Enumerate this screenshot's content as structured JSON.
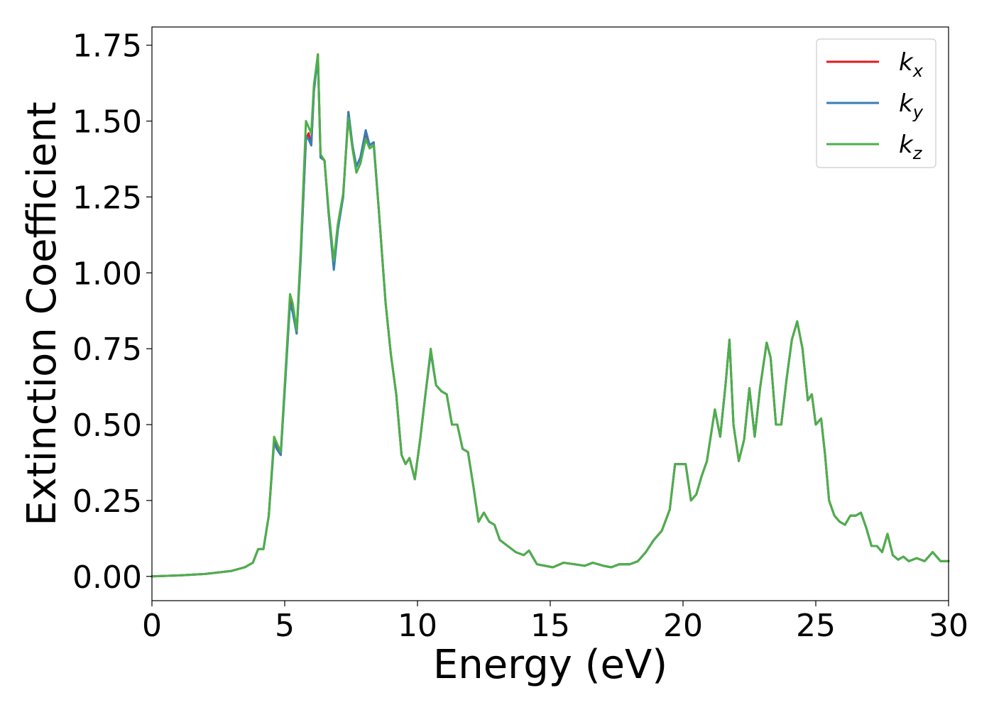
{
  "chart_data": {
    "type": "line",
    "xlabel": "Energy (eV)",
    "ylabel": "Extinction Coefficient",
    "xlim": [
      0,
      30
    ],
    "ylim": [
      -0.08,
      1.81
    ],
    "xticks": [
      0,
      5,
      10,
      15,
      20,
      25,
      30
    ],
    "xtick_labels": [
      "0",
      "5",
      "10",
      "15",
      "20",
      "25",
      "30"
    ],
    "yticks": [
      0,
      0.25,
      0.5,
      0.75,
      1.0,
      1.25,
      1.5,
      1.75
    ],
    "ytick_labels": [
      "0.00",
      "0.25",
      "0.50",
      "0.75",
      "1.00",
      "1.25",
      "1.50",
      "1.75"
    ],
    "grid": false,
    "legend_position": "top-right",
    "series": [
      {
        "name": "k_x",
        "label_main": "k",
        "label_sub": "x",
        "color": "#e41a1c",
        "x": [
          0,
          1,
          2,
          3,
          3.5,
          3.8,
          4.0,
          4.2,
          4.4,
          4.6,
          4.7,
          4.85,
          5.0,
          5.2,
          5.3,
          5.45,
          5.6,
          5.8,
          5.9,
          6.0,
          6.1,
          6.25,
          6.35,
          6.5,
          6.65,
          6.85,
          7.0,
          7.2,
          7.4,
          7.55,
          7.7,
          7.85,
          8.05,
          8.2,
          8.35,
          8.55,
          8.8,
          9.0,
          9.2,
          9.4,
          9.55,
          9.7,
          9.9,
          10.1,
          10.3,
          10.5,
          10.7,
          10.9,
          11.1,
          11.3,
          11.5,
          11.7,
          11.9,
          12.1,
          12.3,
          12.5,
          12.7,
          12.9,
          13.1,
          13.4,
          13.7,
          14.0,
          14.2,
          14.5,
          14.8,
          15.1,
          15.5,
          15.9,
          16.3,
          16.6,
          17.0,
          17.3,
          17.6,
          18.0,
          18.3,
          18.6,
          18.9,
          19.2,
          19.5,
          19.7,
          19.9,
          20.1,
          20.3,
          20.5,
          20.7,
          20.9,
          21.2,
          21.4,
          21.6,
          21.75,
          21.9,
          22.1,
          22.3,
          22.5,
          22.7,
          22.9,
          23.15,
          23.3,
          23.5,
          23.7,
          23.9,
          24.1,
          24.3,
          24.5,
          24.7,
          24.85,
          25.0,
          25.2,
          25.35,
          25.5,
          25.7,
          25.9,
          26.1,
          26.3,
          26.5,
          26.7,
          26.9,
          27.1,
          27.3,
          27.5,
          27.7,
          27.9,
          28.1,
          28.3,
          28.5,
          28.8,
          29.1,
          29.4,
          29.7,
          30.0
        ],
        "values": [
          0.0,
          0.003,
          0.008,
          0.018,
          0.03,
          0.045,
          0.09,
          0.09,
          0.2,
          0.45,
          0.43,
          0.4,
          0.62,
          0.91,
          0.88,
          0.8,
          1.05,
          1.44,
          1.46,
          1.42,
          1.6,
          1.72,
          1.38,
          1.37,
          1.2,
          1.02,
          1.15,
          1.25,
          1.53,
          1.42,
          1.35,
          1.38,
          1.46,
          1.42,
          1.43,
          1.2,
          0.9,
          0.73,
          0.6,
          0.4,
          0.37,
          0.39,
          0.32,
          0.45,
          0.6,
          0.74,
          0.63,
          0.61,
          0.6,
          0.5,
          0.5,
          0.42,
          0.41,
          0.3,
          0.18,
          0.21,
          0.18,
          0.17,
          0.12,
          0.1,
          0.08,
          0.07,
          0.085,
          0.04,
          0.035,
          0.03,
          0.045,
          0.04,
          0.035,
          0.045,
          0.035,
          0.03,
          0.04,
          0.04,
          0.05,
          0.08,
          0.12,
          0.15,
          0.22,
          0.37,
          0.37,
          0.37,
          0.25,
          0.27,
          0.33,
          0.38,
          0.55,
          0.46,
          0.63,
          0.78,
          0.5,
          0.38,
          0.45,
          0.62,
          0.46,
          0.62,
          0.77,
          0.72,
          0.5,
          0.5,
          0.65,
          0.78,
          0.84,
          0.75,
          0.58,
          0.6,
          0.5,
          0.52,
          0.4,
          0.25,
          0.2,
          0.18,
          0.17,
          0.2,
          0.2,
          0.21,
          0.16,
          0.1,
          0.1,
          0.08,
          0.14,
          0.07,
          0.055,
          0.065,
          0.05,
          0.06,
          0.05,
          0.08,
          0.05,
          0.05
        ]
      },
      {
        "name": "k_y",
        "label_main": "k",
        "label_sub": "y",
        "color": "#377eb8",
        "x": [
          0,
          1,
          2,
          3,
          3.5,
          3.8,
          4.0,
          4.2,
          4.4,
          4.6,
          4.7,
          4.85,
          5.0,
          5.2,
          5.3,
          5.45,
          5.6,
          5.8,
          5.9,
          6.0,
          6.1,
          6.25,
          6.35,
          6.5,
          6.65,
          6.85,
          7.0,
          7.2,
          7.4,
          7.55,
          7.7,
          7.85,
          8.05,
          8.2,
          8.35,
          8.55,
          8.8,
          9.0,
          9.2,
          9.4,
          9.55,
          9.7,
          9.9,
          10.1,
          10.3,
          10.5,
          10.7,
          10.9,
          11.1,
          11.3,
          11.5,
          11.7,
          11.9,
          12.1,
          12.3,
          12.5,
          12.7,
          12.9,
          13.1,
          13.4,
          13.7,
          14.0,
          14.2,
          14.5,
          14.8,
          15.1,
          15.5,
          15.9,
          16.3,
          16.6,
          17.0,
          17.3,
          17.6,
          18.0,
          18.3,
          18.6,
          18.9,
          19.2,
          19.5,
          19.7,
          19.9,
          20.1,
          20.3,
          20.5,
          20.7,
          20.9,
          21.2,
          21.4,
          21.6,
          21.75,
          21.9,
          22.1,
          22.3,
          22.5,
          22.7,
          22.9,
          23.15,
          23.3,
          23.5,
          23.7,
          23.9,
          24.1,
          24.3,
          24.5,
          24.7,
          24.85,
          25.0,
          25.2,
          25.35,
          25.5,
          25.7,
          25.9,
          26.1,
          26.3,
          26.5,
          26.7,
          26.9,
          27.1,
          27.3,
          27.5,
          27.7,
          27.9,
          28.1,
          28.3,
          28.5,
          28.8,
          29.1,
          29.4,
          29.7,
          30.0
        ],
        "values": [
          0.0,
          0.003,
          0.008,
          0.018,
          0.03,
          0.045,
          0.09,
          0.09,
          0.2,
          0.44,
          0.42,
          0.4,
          0.61,
          0.9,
          0.87,
          0.8,
          1.04,
          1.45,
          1.44,
          1.42,
          1.6,
          1.71,
          1.38,
          1.37,
          1.2,
          1.01,
          1.14,
          1.25,
          1.53,
          1.42,
          1.35,
          1.38,
          1.47,
          1.42,
          1.43,
          1.2,
          0.9,
          0.73,
          0.6,
          0.4,
          0.37,
          0.39,
          0.32,
          0.45,
          0.6,
          0.74,
          0.63,
          0.61,
          0.6,
          0.5,
          0.5,
          0.42,
          0.41,
          0.3,
          0.18,
          0.21,
          0.18,
          0.17,
          0.12,
          0.1,
          0.08,
          0.07,
          0.085,
          0.04,
          0.035,
          0.03,
          0.045,
          0.04,
          0.035,
          0.045,
          0.035,
          0.03,
          0.04,
          0.04,
          0.05,
          0.08,
          0.12,
          0.15,
          0.22,
          0.37,
          0.37,
          0.37,
          0.25,
          0.27,
          0.33,
          0.38,
          0.55,
          0.46,
          0.63,
          0.78,
          0.5,
          0.38,
          0.45,
          0.62,
          0.46,
          0.62,
          0.77,
          0.72,
          0.5,
          0.5,
          0.65,
          0.78,
          0.84,
          0.75,
          0.58,
          0.6,
          0.5,
          0.52,
          0.4,
          0.25,
          0.2,
          0.18,
          0.17,
          0.2,
          0.2,
          0.21,
          0.16,
          0.1,
          0.1,
          0.08,
          0.14,
          0.07,
          0.055,
          0.065,
          0.05,
          0.06,
          0.05,
          0.08,
          0.05,
          0.05
        ]
      },
      {
        "name": "k_z",
        "label_main": "k",
        "label_sub": "z",
        "color": "#4daf4a",
        "x": [
          0,
          1,
          2,
          3,
          3.5,
          3.8,
          4.0,
          4.2,
          4.4,
          4.6,
          4.7,
          4.85,
          5.0,
          5.2,
          5.3,
          5.45,
          5.6,
          5.8,
          5.9,
          6.0,
          6.1,
          6.25,
          6.35,
          6.5,
          6.65,
          6.85,
          7.0,
          7.2,
          7.4,
          7.55,
          7.7,
          7.85,
          8.05,
          8.2,
          8.35,
          8.55,
          8.8,
          9.0,
          9.2,
          9.4,
          9.55,
          9.7,
          9.9,
          10.1,
          10.3,
          10.5,
          10.7,
          10.9,
          11.1,
          11.3,
          11.5,
          11.7,
          11.9,
          12.1,
          12.3,
          12.5,
          12.7,
          12.9,
          13.1,
          13.4,
          13.7,
          14.0,
          14.2,
          14.5,
          14.8,
          15.1,
          15.5,
          15.9,
          16.3,
          16.6,
          17.0,
          17.3,
          17.6,
          18.0,
          18.3,
          18.6,
          18.9,
          19.2,
          19.5,
          19.7,
          19.9,
          20.1,
          20.3,
          20.5,
          20.7,
          20.9,
          21.2,
          21.4,
          21.6,
          21.75,
          21.9,
          22.1,
          22.3,
          22.5,
          22.7,
          22.9,
          23.15,
          23.3,
          23.5,
          23.7,
          23.9,
          24.1,
          24.3,
          24.5,
          24.7,
          24.85,
          25.0,
          25.2,
          25.35,
          25.5,
          25.7,
          25.9,
          26.1,
          26.3,
          26.5,
          26.7,
          26.9,
          27.1,
          27.3,
          27.5,
          27.7,
          27.9,
          28.1,
          28.3,
          28.5,
          28.8,
          29.1,
          29.4,
          29.7,
          30.0
        ],
        "values": [
          0.0,
          0.003,
          0.008,
          0.018,
          0.03,
          0.045,
          0.09,
          0.09,
          0.2,
          0.46,
          0.44,
          0.41,
          0.63,
          0.93,
          0.9,
          0.81,
          1.07,
          1.5,
          1.48,
          1.46,
          1.62,
          1.72,
          1.39,
          1.37,
          1.21,
          1.04,
          1.16,
          1.26,
          1.51,
          1.41,
          1.33,
          1.36,
          1.44,
          1.41,
          1.42,
          1.2,
          0.9,
          0.73,
          0.6,
          0.4,
          0.37,
          0.39,
          0.32,
          0.45,
          0.6,
          0.75,
          0.63,
          0.61,
          0.6,
          0.5,
          0.5,
          0.42,
          0.41,
          0.3,
          0.18,
          0.21,
          0.18,
          0.17,
          0.12,
          0.1,
          0.08,
          0.07,
          0.085,
          0.04,
          0.035,
          0.03,
          0.045,
          0.04,
          0.035,
          0.045,
          0.035,
          0.03,
          0.04,
          0.04,
          0.05,
          0.08,
          0.12,
          0.15,
          0.22,
          0.37,
          0.37,
          0.37,
          0.25,
          0.27,
          0.33,
          0.38,
          0.55,
          0.46,
          0.63,
          0.78,
          0.5,
          0.38,
          0.45,
          0.62,
          0.46,
          0.62,
          0.77,
          0.72,
          0.5,
          0.5,
          0.65,
          0.78,
          0.84,
          0.75,
          0.58,
          0.6,
          0.5,
          0.52,
          0.4,
          0.25,
          0.2,
          0.18,
          0.17,
          0.2,
          0.2,
          0.21,
          0.16,
          0.1,
          0.1,
          0.08,
          0.14,
          0.07,
          0.055,
          0.065,
          0.05,
          0.06,
          0.05,
          0.08,
          0.05,
          0.05
        ]
      }
    ]
  }
}
